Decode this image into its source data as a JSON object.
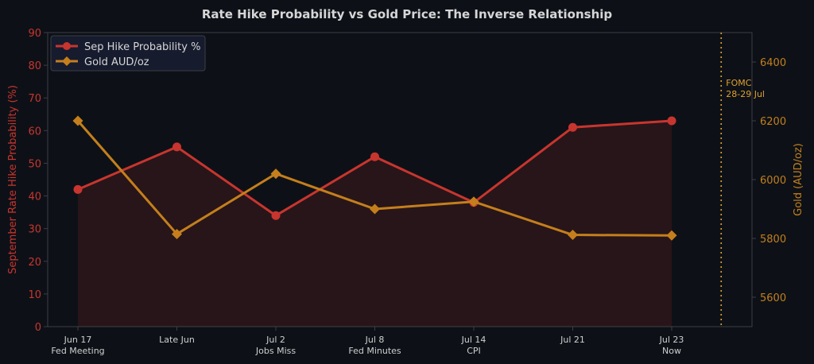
{
  "chart_data": {
    "type": "line",
    "title": "Rate Hike Probability vs Gold Price: The Inverse Relationship",
    "categories": [
      [
        "Jun 17",
        "Fed Meeting"
      ],
      [
        "Late Jun"
      ],
      [
        "Jul 2",
        "Jobs Miss"
      ],
      [
        "Jul 8",
        "Fed Minutes"
      ],
      [
        "Jul 14",
        "CPI"
      ],
      [
        "Jul 21"
      ],
      [
        "Jul 23",
        "Now"
      ]
    ],
    "y_left": {
      "label": "September Rate Hike Probability (%)",
      "min": 0,
      "max": 90,
      "ticks": [
        "0",
        "10",
        "20",
        "30",
        "40",
        "50",
        "60",
        "70",
        "80",
        "90"
      ]
    },
    "y_right": {
      "label": "Gold (AUD/oz)",
      "min": 5500,
      "max": 6500,
      "ticks": [
        "5600",
        "5800",
        "6000",
        "6200",
        "6400"
      ]
    },
    "series": [
      {
        "name": "Sep Hike Probability %",
        "axis": "left",
        "color": "#c8352e",
        "marker": "circle",
        "filled": true,
        "values": [
          42,
          55,
          34,
          52,
          38,
          61,
          63
        ]
      },
      {
        "name": "Gold AUD/oz",
        "axis": "right",
        "color": "#c47f1c",
        "marker": "diamond",
        "filled": false,
        "values": [
          6200,
          5815,
          6020,
          5900,
          5925,
          5812,
          5810
        ]
      }
    ],
    "annotation": {
      "lines": [
        "FOMC",
        "28-29 Jul"
      ],
      "color": "#e0a030",
      "style": "dotted",
      "x_position": 6.5
    },
    "legend": "top-left",
    "grid": false
  }
}
